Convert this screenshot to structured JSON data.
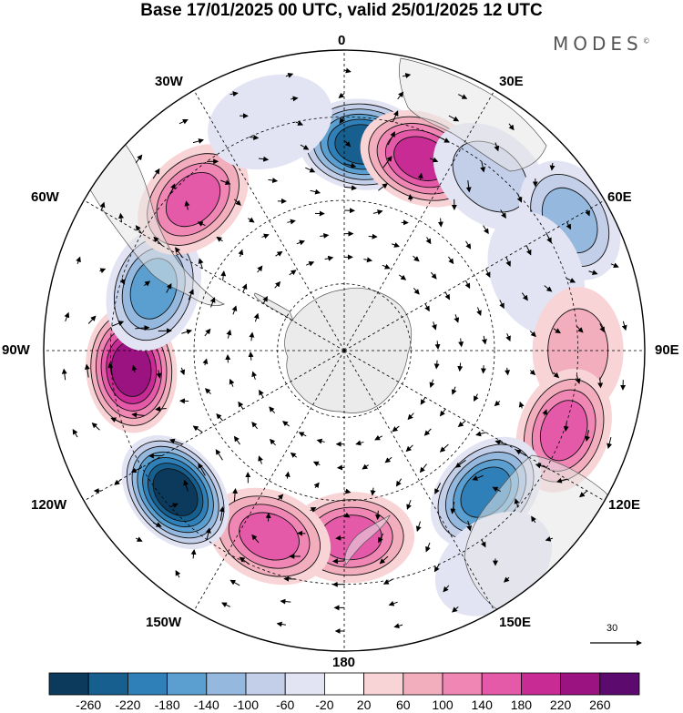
{
  "title": "Base 17/01/2025 00 UTC, valid 25/01/2025 12 UTC",
  "brand": "MODES",
  "brand_mark": "©",
  "projection": "south-polar-stereographic",
  "longitude_labels": {
    "lon_0": "0",
    "lon_30e": "30E",
    "lon_60e": "60E",
    "lon_90e": "90E",
    "lon_120e": "120E",
    "lon_150e": "150E",
    "lon_180": "180",
    "lon_150w": "150W",
    "lon_120w": "120W",
    "lon_90w": "90W",
    "lon_60w": "60W",
    "lon_30w": "30W"
  },
  "reference_vector": {
    "label": "30"
  },
  "colorbar": {
    "colors": [
      "#0b3a5c",
      "#175f8e",
      "#2f80b8",
      "#5a9fcf",
      "#95b9de",
      "#c3cfe8",
      "#e3e4f3",
      "#ffffff",
      "#f9d4d6",
      "#f3aebd",
      "#ef86b4",
      "#e459a8",
      "#c82b94",
      "#9a1380",
      "#5c0a6e"
    ],
    "tick_labels": [
      "-260",
      "-220",
      "-180",
      "-140",
      "-100",
      "-60",
      "-20",
      "20",
      "60",
      "100",
      "140",
      "180",
      "220",
      "260"
    ]
  },
  "anomaly_cells": [
    {
      "lon": 5,
      "colat": 62,
      "value": -220
    },
    {
      "lon": 22,
      "colat": 62,
      "value": 190
    },
    {
      "lon": 40,
      "colat": 68,
      "value": -60
    },
    {
      "lon": 60,
      "colat": 78,
      "value": -120
    },
    {
      "lon": 68,
      "colat": 62,
      "value": -40
    },
    {
      "lon": 90,
      "colat": 70,
      "value": 60
    },
    {
      "lon": 110,
      "colat": 70,
      "value": 150
    },
    {
      "lon": 135,
      "colat": 60,
      "value": -200
    },
    {
      "lon": 145,
      "colat": 78,
      "value": -40
    },
    {
      "lon": 178,
      "colat": 56,
      "value": 140
    },
    {
      "lon": -158,
      "colat": 60,
      "value": 150
    },
    {
      "lon": -130,
      "colat": 66,
      "value": -260
    },
    {
      "lon": -95,
      "colat": 64,
      "value": 230
    },
    {
      "lon": -72,
      "colat": 60,
      "value": -160
    },
    {
      "lon": -45,
      "colat": 64,
      "value": 160
    },
    {
      "lon": -18,
      "colat": 72,
      "value": -40
    }
  ],
  "landmasses": [
    {
      "name": "Antarctica"
    },
    {
      "name": "South America"
    },
    {
      "name": "Africa"
    },
    {
      "name": "Australia"
    },
    {
      "name": "New Zealand"
    }
  ]
}
